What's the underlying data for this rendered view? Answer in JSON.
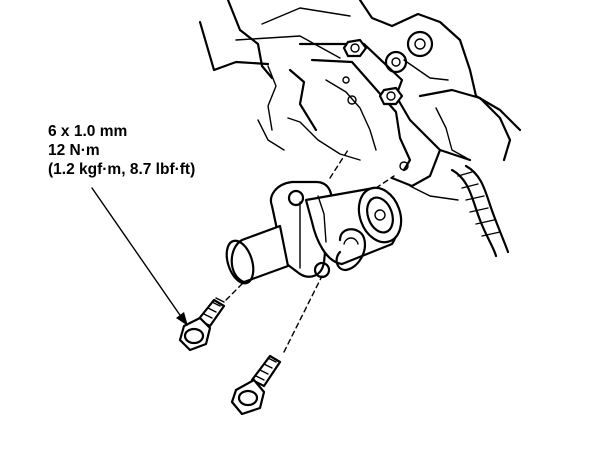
{
  "callout": {
    "line1": "6 x 1.0 mm",
    "line2": "12 N·m",
    "line3": "(1.2 kgf·m, 8.7 lbf·ft)"
  },
  "icons": [
    "bolt-icon",
    "leader-arrow-icon"
  ],
  "colors": {
    "ink": "#000000",
    "paper": "#ffffff"
  }
}
